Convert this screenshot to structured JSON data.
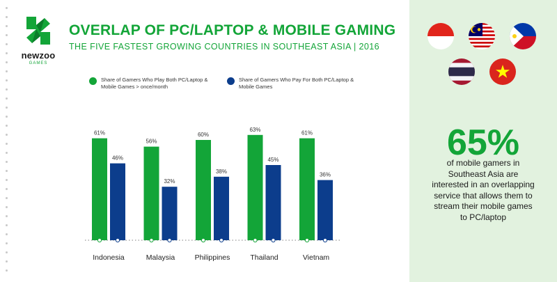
{
  "brand": {
    "name": "newzoo",
    "sub": "GAMES"
  },
  "header": {
    "title": "OVERLAP OF PC/LAPTOP & MOBILE GAMING",
    "subtitle": "THE FIVE FASTEST GROWING COUNTRIES IN SOUTHEAST ASIA | 2016"
  },
  "legend": [
    {
      "label": "Share of Gamers Who Play Both PC/Laptop & Mobile Games > once/month",
      "color": "#13a538"
    },
    {
      "label": "Share of Gamers Who Pay For Both PC/Laptop & Mobile Games",
      "color": "#0c3d8c"
    }
  ],
  "chart_data": {
    "type": "bar",
    "categories": [
      "Indonesia",
      "Malaysia",
      "Philippines",
      "Thailand",
      "Vietnam"
    ],
    "series": [
      {
        "name": "Share of Gamers Who Play Both PC/Laptop & Mobile Games > once/month",
        "values": [
          61,
          56,
          60,
          63,
          61
        ],
        "labels": [
          "61%",
          "56%",
          "60%",
          "63%",
          "61%"
        ],
        "color": "#13a538"
      },
      {
        "name": "Share of Gamers Who Pay For Both PC/Laptop & Mobile Games",
        "values": [
          46,
          32,
          38,
          45,
          36
        ],
        "labels": [
          "46%",
          "32%",
          "38%",
          "45%",
          "36%"
        ],
        "color": "#0c3d8c"
      }
    ],
    "ylim": [
      0,
      100
    ],
    "title": "",
    "xlabel": "",
    "ylabel": "",
    "grid": false,
    "legend_position": "top"
  },
  "stat": {
    "value": "65%",
    "text": "of mobile gamers in Southeast Asia are interested in an overlapping service that allows them to stream their mobile games to PC/laptop"
  },
  "flags": [
    "flag-indonesia",
    "flag-malaysia",
    "flag-philippines",
    "flag-thailand",
    "flag-vietnam"
  ]
}
